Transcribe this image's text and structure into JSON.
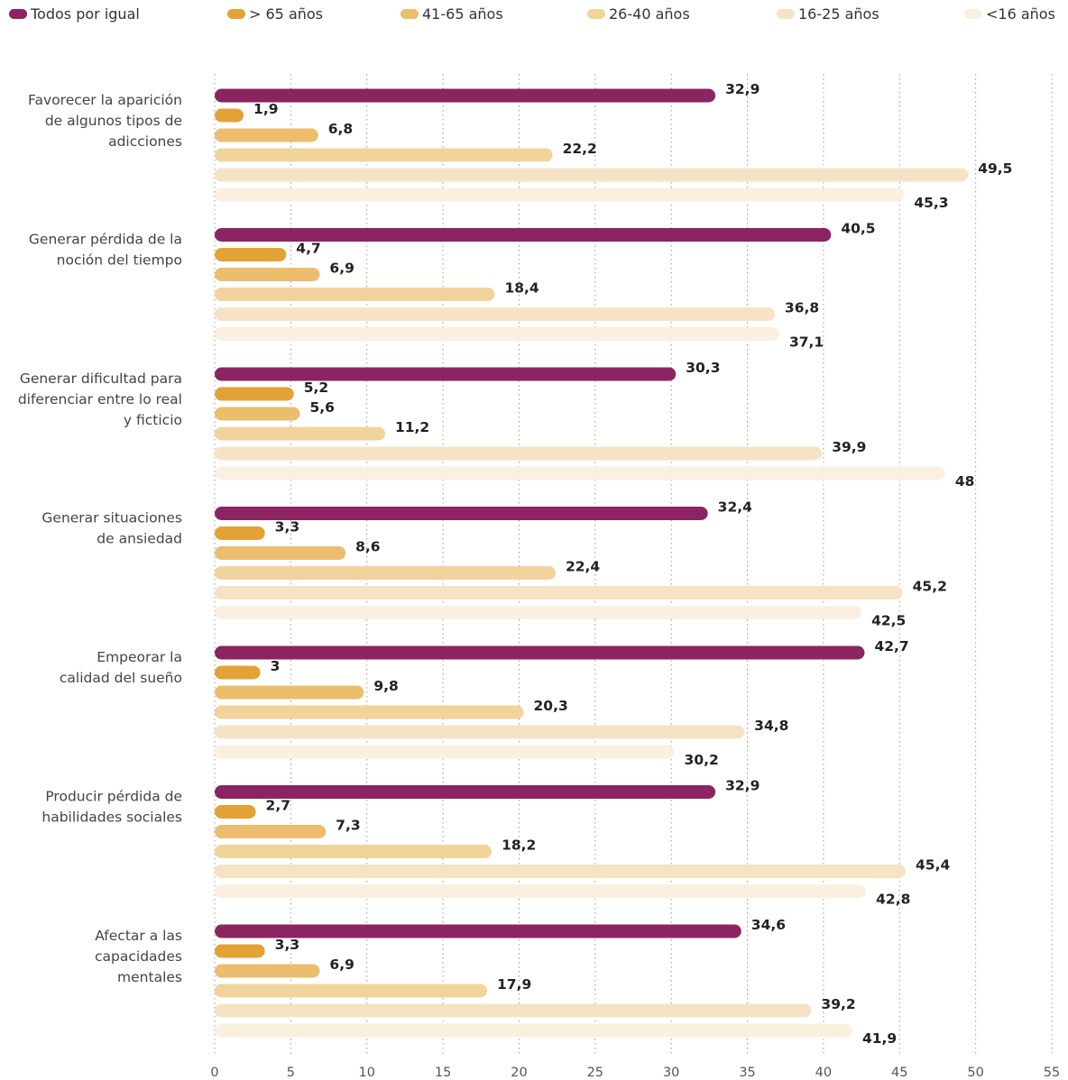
{
  "chart_data": {
    "type": "bar",
    "orientation": "horizontal",
    "title": "",
    "xlabel": "",
    "ylabel": "",
    "xlim": [
      0,
      55
    ],
    "ticks": [
      0,
      5,
      10,
      15,
      20,
      25,
      30,
      35,
      40,
      45,
      50,
      55
    ],
    "tick_labels": [
      "0",
      "5",
      "10",
      "15",
      "20",
      "25",
      "30",
      "35",
      "40",
      "45",
      "50",
      "55"
    ],
    "grid": "vertical dotted",
    "legend_position": "top",
    "categories": [
      [
        "Favorecer la aparición",
        "de algunos tipos de",
        "adicciones"
      ],
      [
        "Generar pérdida de la",
        "noción del tiempo"
      ],
      [
        "Generar dificultad para",
        "diferenciar entre lo real",
        "y ficticio"
      ],
      [
        "Generar situaciones",
        "de ansiedad"
      ],
      [
        "Empeorar la",
        "calidad del sueño"
      ],
      [
        "Producir pérdida de",
        "habilidades sociales"
      ],
      [
        "Afectar a las",
        "capacidades",
        "mentales"
      ]
    ],
    "series": [
      {
        "name": "Todos por igual",
        "color": "#8b2461",
        "values": [
          32.9,
          40.5,
          30.3,
          32.4,
          42.7,
          32.9,
          34.6
        ],
        "labels": [
          "32,9",
          "40,5",
          "30,3",
          "32,4",
          "42,7",
          "32,9",
          "34,6"
        ]
      },
      {
        "name": "> 65 años",
        "color": "#e3a235",
        "values": [
          1.9,
          4.7,
          5.2,
          3.3,
          3,
          2.7,
          3.3
        ],
        "labels": [
          "1,9",
          "4,7",
          "5,2",
          "3,3",
          "3",
          "2,7",
          "3,3"
        ]
      },
      {
        "name": "41-65 años",
        "color": "#ebbd6c",
        "values": [
          6.8,
          6.9,
          5.6,
          8.6,
          9.8,
          7.3,
          6.9
        ],
        "labels": [
          "6,8",
          "6,9",
          "5,6",
          "8,6",
          "9,8",
          "7,3",
          "6,9"
        ]
      },
      {
        "name": "26-40 años",
        "color": "#f1d39c",
        "values": [
          22.2,
          18.4,
          11.2,
          22.4,
          20.3,
          18.2,
          17.9
        ],
        "labels": [
          "22,2",
          "18,4",
          "11,2",
          "22,4",
          "20,3",
          "18,2",
          "17,9"
        ]
      },
      {
        "name": "16-25 años",
        "color": "#f6e3c5",
        "values": [
          49.5,
          36.8,
          39.9,
          45.2,
          34.8,
          45.4,
          39.2
        ],
        "labels": [
          "49,5",
          "36,8",
          "39,9",
          "45,2",
          "34,8",
          "45,4",
          "39,2"
        ]
      },
      {
        "name": "<16 años",
        "color": "#fbf0e0",
        "values": [
          45.3,
          37.1,
          48,
          42.5,
          30.2,
          42.8,
          41.9
        ],
        "labels": [
          "45,3",
          "37,1",
          "48",
          "42,5",
          "30,2",
          "42,8",
          "41,9"
        ]
      }
    ]
  }
}
